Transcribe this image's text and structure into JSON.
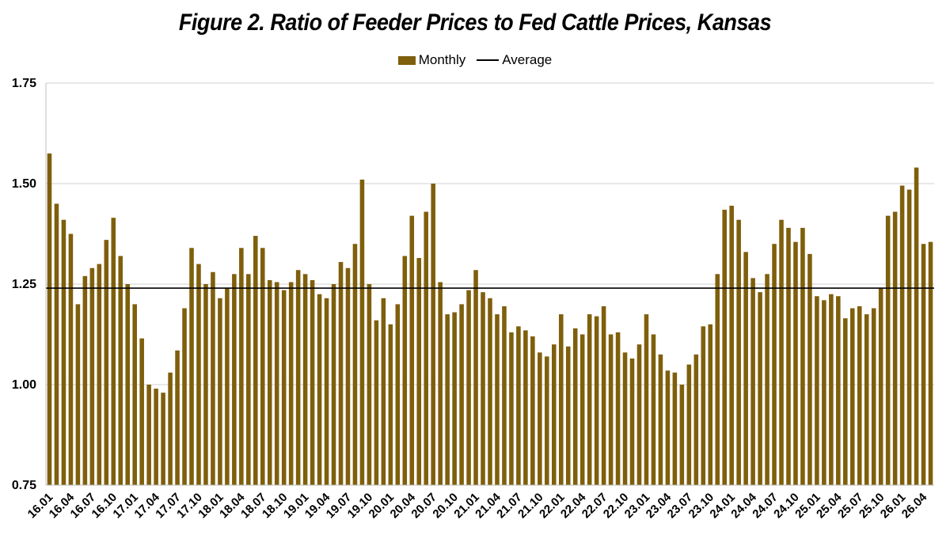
{
  "chart_data": {
    "type": "bar",
    "title": "Figure 2. Ratio of Feeder Prices to Fed Cattle Prices, Kansas",
    "xlabel": "",
    "ylabel": "",
    "ylim": [
      0.75,
      1.75
    ],
    "yticks": [
      "0.75",
      "1.00",
      "1.25",
      "1.50",
      "1.75"
    ],
    "ytick_values": [
      0.75,
      1.0,
      1.25,
      1.5,
      1.75
    ],
    "grid": true,
    "legend_position": "top-center",
    "series": [
      {
        "name": "Monthly",
        "color": "#7F5F0C",
        "values": [
          1.575,
          1.45,
          1.41,
          1.375,
          1.2,
          1.27,
          1.29,
          1.3,
          1.36,
          1.415,
          1.32,
          1.25,
          1.2,
          1.115,
          1.0,
          0.99,
          0.98,
          1.03,
          1.085,
          1.19,
          1.34,
          1.3,
          1.25,
          1.28,
          1.215,
          1.24,
          1.275,
          1.34,
          1.275,
          1.37,
          1.34,
          1.26,
          1.255,
          1.235,
          1.255,
          1.285,
          1.275,
          1.26,
          1.225,
          1.215,
          1.25,
          1.305,
          1.29,
          1.35,
          1.51,
          1.25,
          1.16,
          1.215,
          1.15,
          1.2,
          1.32,
          1.42,
          1.315,
          1.43,
          1.5,
          1.255,
          1.175,
          1.18,
          1.2,
          1.235,
          1.285,
          1.23,
          1.215,
          1.175,
          1.195,
          1.13,
          1.145,
          1.135,
          1.12,
          1.08,
          1.07,
          1.1,
          1.175,
          1.095,
          1.14,
          1.125,
          1.175,
          1.17,
          1.195,
          1.125,
          1.13,
          1.08,
          1.065,
          1.1,
          1.175,
          1.125,
          1.075,
          1.035,
          1.03,
          1.0,
          1.05,
          1.075,
          1.145,
          1.15,
          1.275,
          1.435,
          1.445,
          1.41,
          1.33,
          1.265,
          1.23,
          1.275,
          1.35,
          1.41,
          1.39,
          1.355,
          1.39,
          1.325,
          1.22,
          1.21,
          1.225,
          1.22,
          1.165,
          1.19,
          1.195,
          1.175,
          1.19,
          1.24,
          1.42,
          1.43,
          1.495,
          1.485,
          1.54,
          1.35,
          1.355
        ]
      },
      {
        "name": "Average",
        "type": "line",
        "color": "#000000",
        "value": 1.24
      }
    ],
    "x_tick_labels": [
      "16.01",
      "16.04",
      "16.07",
      "16.10",
      "17.01",
      "17.04",
      "17.07",
      "17.10",
      "18.01",
      "18.04",
      "18.07",
      "18.10",
      "19.01",
      "19.04",
      "19.07",
      "19.10",
      "20.01",
      "20.04",
      "20.07",
      "20.10",
      "21.01",
      "21.04",
      "21.07",
      "21.10",
      "22.01",
      "22.04",
      "22.07",
      "22.10",
      "23.01",
      "23.04",
      "23.07",
      "23.10",
      "24.01",
      "24.04",
      "24.07",
      "24.10",
      "25.01",
      "25.04",
      "25.07",
      "25.10",
      "26.01",
      "26.04"
    ],
    "x_tick_every": 3
  },
  "legend": {
    "monthly_label": "Monthly",
    "average_label": "Average"
  },
  "colors": {
    "bar": "#7F5F0C",
    "average_line": "#000000",
    "grid": "#d0d0d0",
    "axis": "#bfbfbf"
  }
}
